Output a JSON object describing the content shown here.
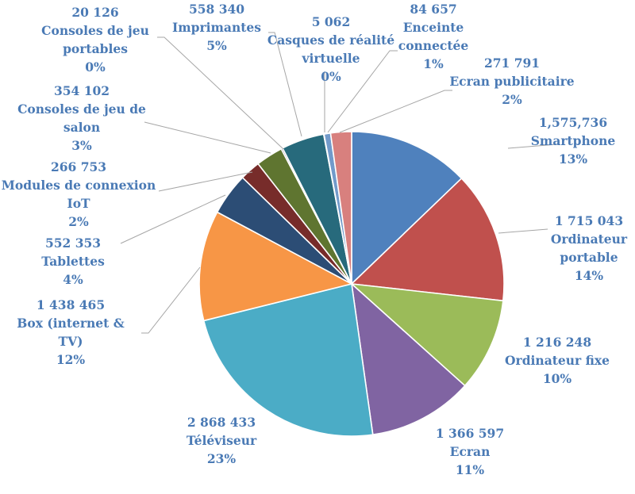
{
  "chart_data": {
    "type": "pie",
    "title": "",
    "label_color": "#4a7ab5",
    "slices": [
      {
        "name": "Smartphone",
        "value_label": "1,575,736",
        "value": 1575736,
        "percent_label": "13%",
        "color": "#4f81bd"
      },
      {
        "name": "Ordinateur portable",
        "value_label": "1 715 043",
        "value": 1715043,
        "percent_label": "14%",
        "color": "#c0504d"
      },
      {
        "name": "Ordinateur fixe",
        "value_label": "1 216 248",
        "value": 1216248,
        "percent_label": "10%",
        "color": "#9bbb59"
      },
      {
        "name": "Ecran",
        "value_label": "1 366 597",
        "value": 1366597,
        "percent_label": "11%",
        "color": "#8064a2"
      },
      {
        "name": "Téléviseur",
        "value_label": "2 868 433",
        "value": 2868433,
        "percent_label": "23%",
        "color": "#4bacc6"
      },
      {
        "name": "Box (internet & TV)",
        "value_label": "1 438 465",
        "value": 1438465,
        "percent_label": "12%",
        "color": "#f79646"
      },
      {
        "name": "Tablettes",
        "value_label": "552 353",
        "value": 552353,
        "percent_label": "4%",
        "color": "#2c4d75"
      },
      {
        "name": "Modules de connexion IoT",
        "value_label": "266 753",
        "value": 266753,
        "percent_label": "2%",
        "color": "#772c2a"
      },
      {
        "name": "Consoles de jeu de salon",
        "value_label": "354 102",
        "value": 354102,
        "percent_label": "3%",
        "color": "#5f7530"
      },
      {
        "name": "Consoles de jeu portables",
        "value_label": "20 126",
        "value": 20126,
        "percent_label": "0%",
        "color": "#4d3b62"
      },
      {
        "name": "Imprimantes",
        "value_label": "558 340",
        "value": 558340,
        "percent_label": "5%",
        "color": "#276a7c"
      },
      {
        "name": "Casques de réalité virtuelle",
        "value_label": "5 062",
        "value": 5062,
        "percent_label": "0%",
        "color": "#b65708"
      },
      {
        "name": "Enceinte connectée",
        "value_label": "84 657",
        "value": 84657,
        "percent_label": "1%",
        "color": "#729aca"
      },
      {
        "name": "Ecran publicitaire",
        "value_label": "271 791",
        "value": 271791,
        "percent_label": "2%",
        "color": "#d8807e"
      }
    ]
  }
}
